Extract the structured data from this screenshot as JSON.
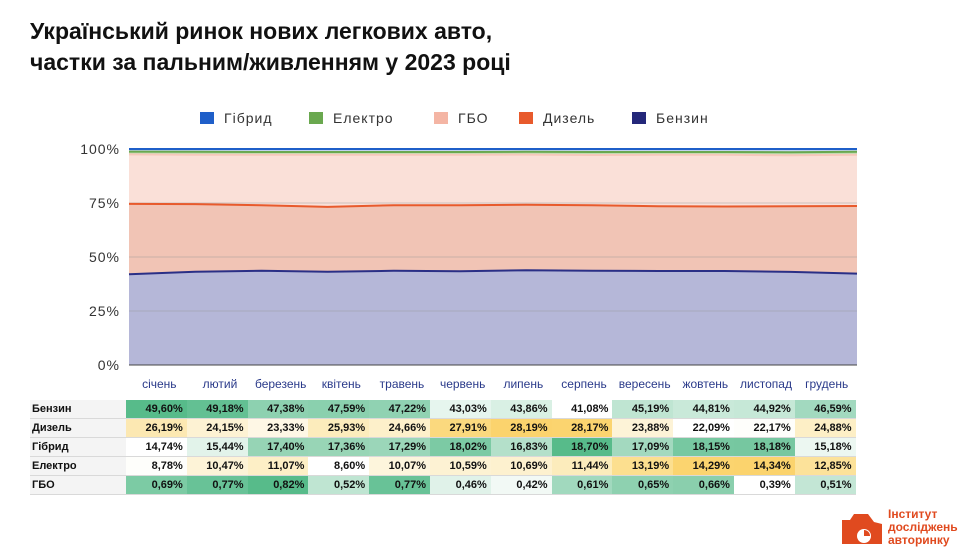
{
  "title_lines": [
    "Український ринок нових легкових авто,",
    "частки за пальним/живленням у 2023 році"
  ],
  "logo": {
    "lines": [
      "Інститут",
      "досліджень",
      "авторинку"
    ],
    "color": "#e04a1f"
  },
  "chart_data": {
    "type": "area",
    "stacked": true,
    "categories": [
      "січень",
      "лютий",
      "березень",
      "квітень",
      "травень",
      "червень",
      "липень",
      "серпень",
      "вересень",
      "жовтень",
      "листопад",
      "грудень"
    ],
    "yticks": [
      "0%",
      "25%",
      "50%",
      "75%",
      "100%"
    ],
    "ylim": [
      0,
      100
    ],
    "legend_position": "top",
    "legend": [
      {
        "name": "Гібрид",
        "color": "#1f5fc9"
      },
      {
        "name": "Електро",
        "color": "#6aa84f"
      },
      {
        "name": "ГБО",
        "color": "#f4b5a4"
      },
      {
        "name": "Дизель",
        "color": "#e85a2c"
      },
      {
        "name": "Бензин",
        "color": "#24287a"
      }
    ],
    "series": [
      {
        "name": "Бензин",
        "line": "#2a2f86",
        "fill": "#b5b7d8",
        "values": [
          42.0,
          43.2,
          43.6,
          43.2,
          43.6,
          43.4,
          43.9,
          43.6,
          43.5,
          43.5,
          43.1,
          42.3
        ]
      },
      {
        "name": "Дизель",
        "line": "#e85a2c",
        "fill": "#f1c4b5",
        "values": [
          32.6,
          31.3,
          30.4,
          30.0,
          30.4,
          30.6,
          30.3,
          30.4,
          30.0,
          29.9,
          30.4,
          31.3
        ]
      },
      {
        "name": "ГБО",
        "line": "#f6c8ba",
        "fill": "#fae0d8",
        "values": [
          22.9,
          22.8,
          23.3,
          24.1,
          23.3,
          23.3,
          23.2,
          23.2,
          23.8,
          23.9,
          23.6,
          23.7
        ]
      },
      {
        "name": "Електро",
        "line": "#6aa84f",
        "fill": "#bfdcb1",
        "values": [
          1.3,
          1.4,
          1.3,
          1.3,
          1.3,
          1.3,
          1.3,
          1.4,
          1.3,
          1.3,
          1.4,
          1.4
        ]
      },
      {
        "name": "Гібрид",
        "line": "#1f5fc9",
        "fill": "#c0d2ef",
        "values": [
          1.2,
          1.3,
          1.4,
          1.4,
          1.4,
          1.4,
          1.3,
          1.4,
          1.4,
          1.4,
          1.5,
          1.3
        ]
      }
    ],
    "table": {
      "rows": [
        {
          "label": "Бензин",
          "cells": [
            "49,60%",
            "49,18%",
            "47,38%",
            "47,59%",
            "47,22%",
            "43,03%",
            "43,86%",
            "41,08%",
            "45,19%",
            "44,81%",
            "44,92%",
            "46,59%"
          ],
          "colors": [
            "#57bb8a",
            "#63c093",
            "#8dd1b0",
            "#8ad0ae",
            "#90d2b2",
            "#e6f5ee",
            "#d9f0e4",
            "#ffffff",
            "#bfe5d2",
            "#c9e9d9",
            "#c6e8d7",
            "#a2d9bf"
          ]
        },
        {
          "label": "Дизель",
          "cells": [
            "26,19%",
            "24,15%",
            "23,33%",
            "25,93%",
            "24,66%",
            "27,91%",
            "28,19%",
            "28,17%",
            "23,88%",
            "22,09%",
            "22,17%",
            "24,88%"
          ],
          "colors": [
            "#fce8b2",
            "#fdf2d3",
            "#fef7e5",
            "#fcecbc",
            "#fdf0ca",
            "#fbd97e",
            "#fbd36d",
            "#fbd46f",
            "#fdf3d7",
            "#ffffff",
            "#fefefb",
            "#fdefc6"
          ]
        },
        {
          "label": "Гібрид",
          "cells": [
            "14,74%",
            "15,44%",
            "17,40%",
            "17,36%",
            "17,29%",
            "18,02%",
            "16,83%",
            "18,70%",
            "17,09%",
            "18,15%",
            "18,18%",
            "15,18%"
          ],
          "colors": [
            "#ffffff",
            "#e2f3ea",
            "#96d4b5",
            "#98d5b6",
            "#9bd6b9",
            "#7ccaa4",
            "#b4e0ca",
            "#57bb8a",
            "#a3d9bf",
            "#77c8a1",
            "#76c7a0",
            "#ecf7f1"
          ]
        },
        {
          "label": "Електро",
          "cells": [
            "8,78%",
            "10,47%",
            "11,07%",
            "8,60%",
            "10,07%",
            "10,59%",
            "10,69%",
            "11,44%",
            "13,19%",
            "14,29%",
            "14,34%",
            "12,85%"
          ],
          "colors": [
            "#fefefb",
            "#fdf3d7",
            "#fdefc6",
            "#ffffff",
            "#fdf5dc",
            "#fdf2d3",
            "#fdf1cf",
            "#fcecbc",
            "#fcdf8f",
            "#fbd46f",
            "#fbd36d",
            "#fce29a"
          ]
        },
        {
          "label": "ГБО",
          "cells": [
            "0,69%",
            "0,77%",
            "0,82%",
            "0,52%",
            "0,77%",
            "0,46%",
            "0,42%",
            "0,61%",
            "0,65%",
            "0,66%",
            "0,39%",
            "0,51%"
          ],
          "colors": [
            "#7ccba4",
            "#68c297",
            "#57bb8a",
            "#bfe5d2",
            "#68c297",
            "#e0f2e9",
            "#f2f9f5",
            "#a1d9be",
            "#8ed1b0",
            "#8acfad",
            "#ffffff",
            "#c3e6d5"
          ]
        }
      ]
    }
  }
}
